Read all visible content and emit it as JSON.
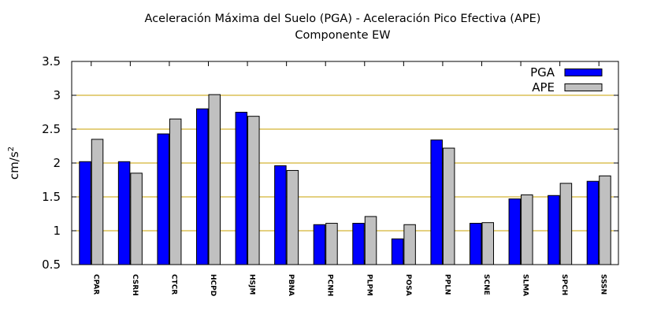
{
  "chart_data": {
    "type": "bar",
    "title": "Aceleración Máxima del Suelo (PGA) -  Aceleración Pico Efectiva (APE)",
    "subtitle": "Componente EW",
    "ylabel_base": "cm/s",
    "ylabel_exp": "2",
    "xlabel": "",
    "ylim": [
      0.5,
      3.5
    ],
    "yticks": [
      0.5,
      1,
      1.5,
      2,
      2.5,
      3,
      3.5
    ],
    "grid": "horizontal",
    "legend_position": "top-right",
    "categories": [
      "CPAR",
      "CSRH",
      "CTCR",
      "HCPD",
      "HSJM",
      "PBNA",
      "PCNH",
      "PLPM",
      "POSA",
      "PPLN",
      "SCNE",
      "SLMA",
      "SPCH",
      "SSSN"
    ],
    "series": [
      {
        "name": "PGA",
        "color": "#0000ff",
        "values": [
          2.02,
          2.02,
          2.43,
          2.8,
          2.75,
          1.96,
          1.09,
          1.11,
          0.88,
          2.34,
          1.11,
          1.47,
          1.52,
          1.73
        ]
      },
      {
        "name": "APE",
        "color": "#c0c0c0",
        "values": [
          2.35,
          1.85,
          2.65,
          3.01,
          2.69,
          1.89,
          1.11,
          1.21,
          1.09,
          2.22,
          1.12,
          1.53,
          1.7,
          1.81
        ]
      }
    ],
    "grid_color": "#c8a000"
  }
}
